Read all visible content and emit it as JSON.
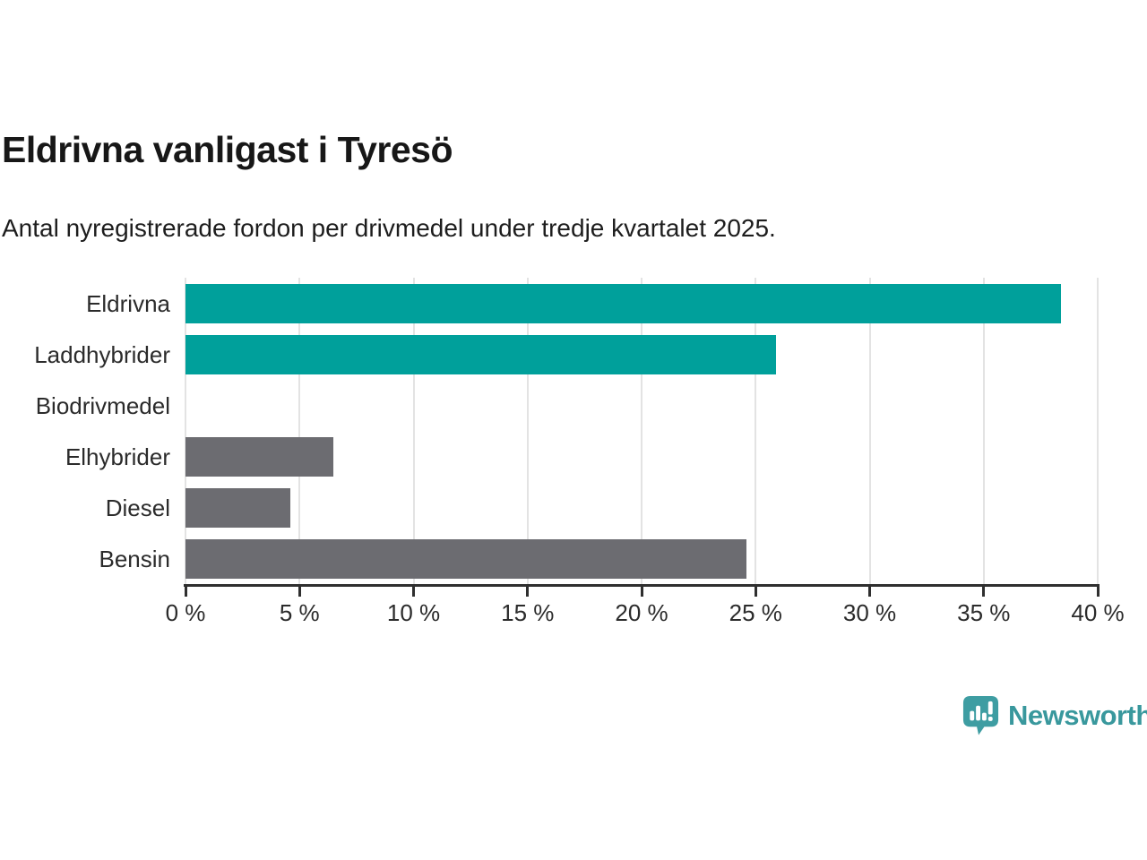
{
  "chart_data": {
    "type": "bar",
    "orientation": "horizontal",
    "title": "Eldrivna vanligast i Tyresö",
    "subtitle": "Antal nyregistrerade fordon per drivmedel under tredje kvartalet 2025.",
    "categories": [
      "Eldrivna",
      "Laddhybrider",
      "Biodrivmedel",
      "Elhybrider",
      "Diesel",
      "Bensin"
    ],
    "values": [
      38.4,
      25.9,
      0,
      6.5,
      4.6,
      24.6
    ],
    "bar_colors": [
      "#00A09B",
      "#00A09B",
      "#6C6C71",
      "#6C6C71",
      "#6C6C71",
      "#6C6C71"
    ],
    "accent_teal": "#00A09B",
    "neutral_gray": "#6C6C71",
    "xlim": [
      0,
      40
    ],
    "tick_values": [
      0,
      5,
      10,
      15,
      20,
      25,
      30,
      35,
      40
    ],
    "tick_labels": [
      "0 %",
      "5 %",
      "10 %",
      "15 %",
      "20 %",
      "25 %",
      "30 %",
      "35 %",
      "40 %"
    ],
    "grid": "vertical",
    "gridline_color": "#E3E3E3",
    "axis_color": "#2F2F2F",
    "legend": "none"
  },
  "footer": {
    "brand": "Newsworthy",
    "brand_color": "#39989D",
    "logo_color": "#3E9DA2",
    "logo_icon": "speech-bubble-bar-chart-icon"
  }
}
